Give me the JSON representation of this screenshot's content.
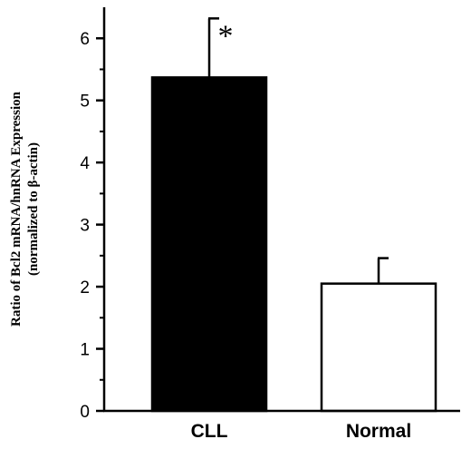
{
  "chart_data": {
    "type": "bar",
    "categories": [
      "CLL",
      "Normal"
    ],
    "values": [
      5.37,
      2.05
    ],
    "error_upper": [
      6.32,
      2.46
    ],
    "bar_fill": [
      "#000000",
      "#ffffff"
    ],
    "ylabel_line1": "Ratio of Bcl2 mRNA/hnRNA Expression",
    "ylabel_line2": "(normalized to β-actin)",
    "ylim": [
      0,
      6.5
    ],
    "yticks": [
      0,
      1,
      2,
      3,
      4,
      5,
      6
    ],
    "ytick_labels": [
      "0",
      "1",
      "2",
      "3",
      "4",
      "5",
      "6"
    ],
    "annotations": [
      {
        "category": "CLL",
        "text": "*"
      }
    ],
    "grid": false,
    "legend": "none"
  }
}
